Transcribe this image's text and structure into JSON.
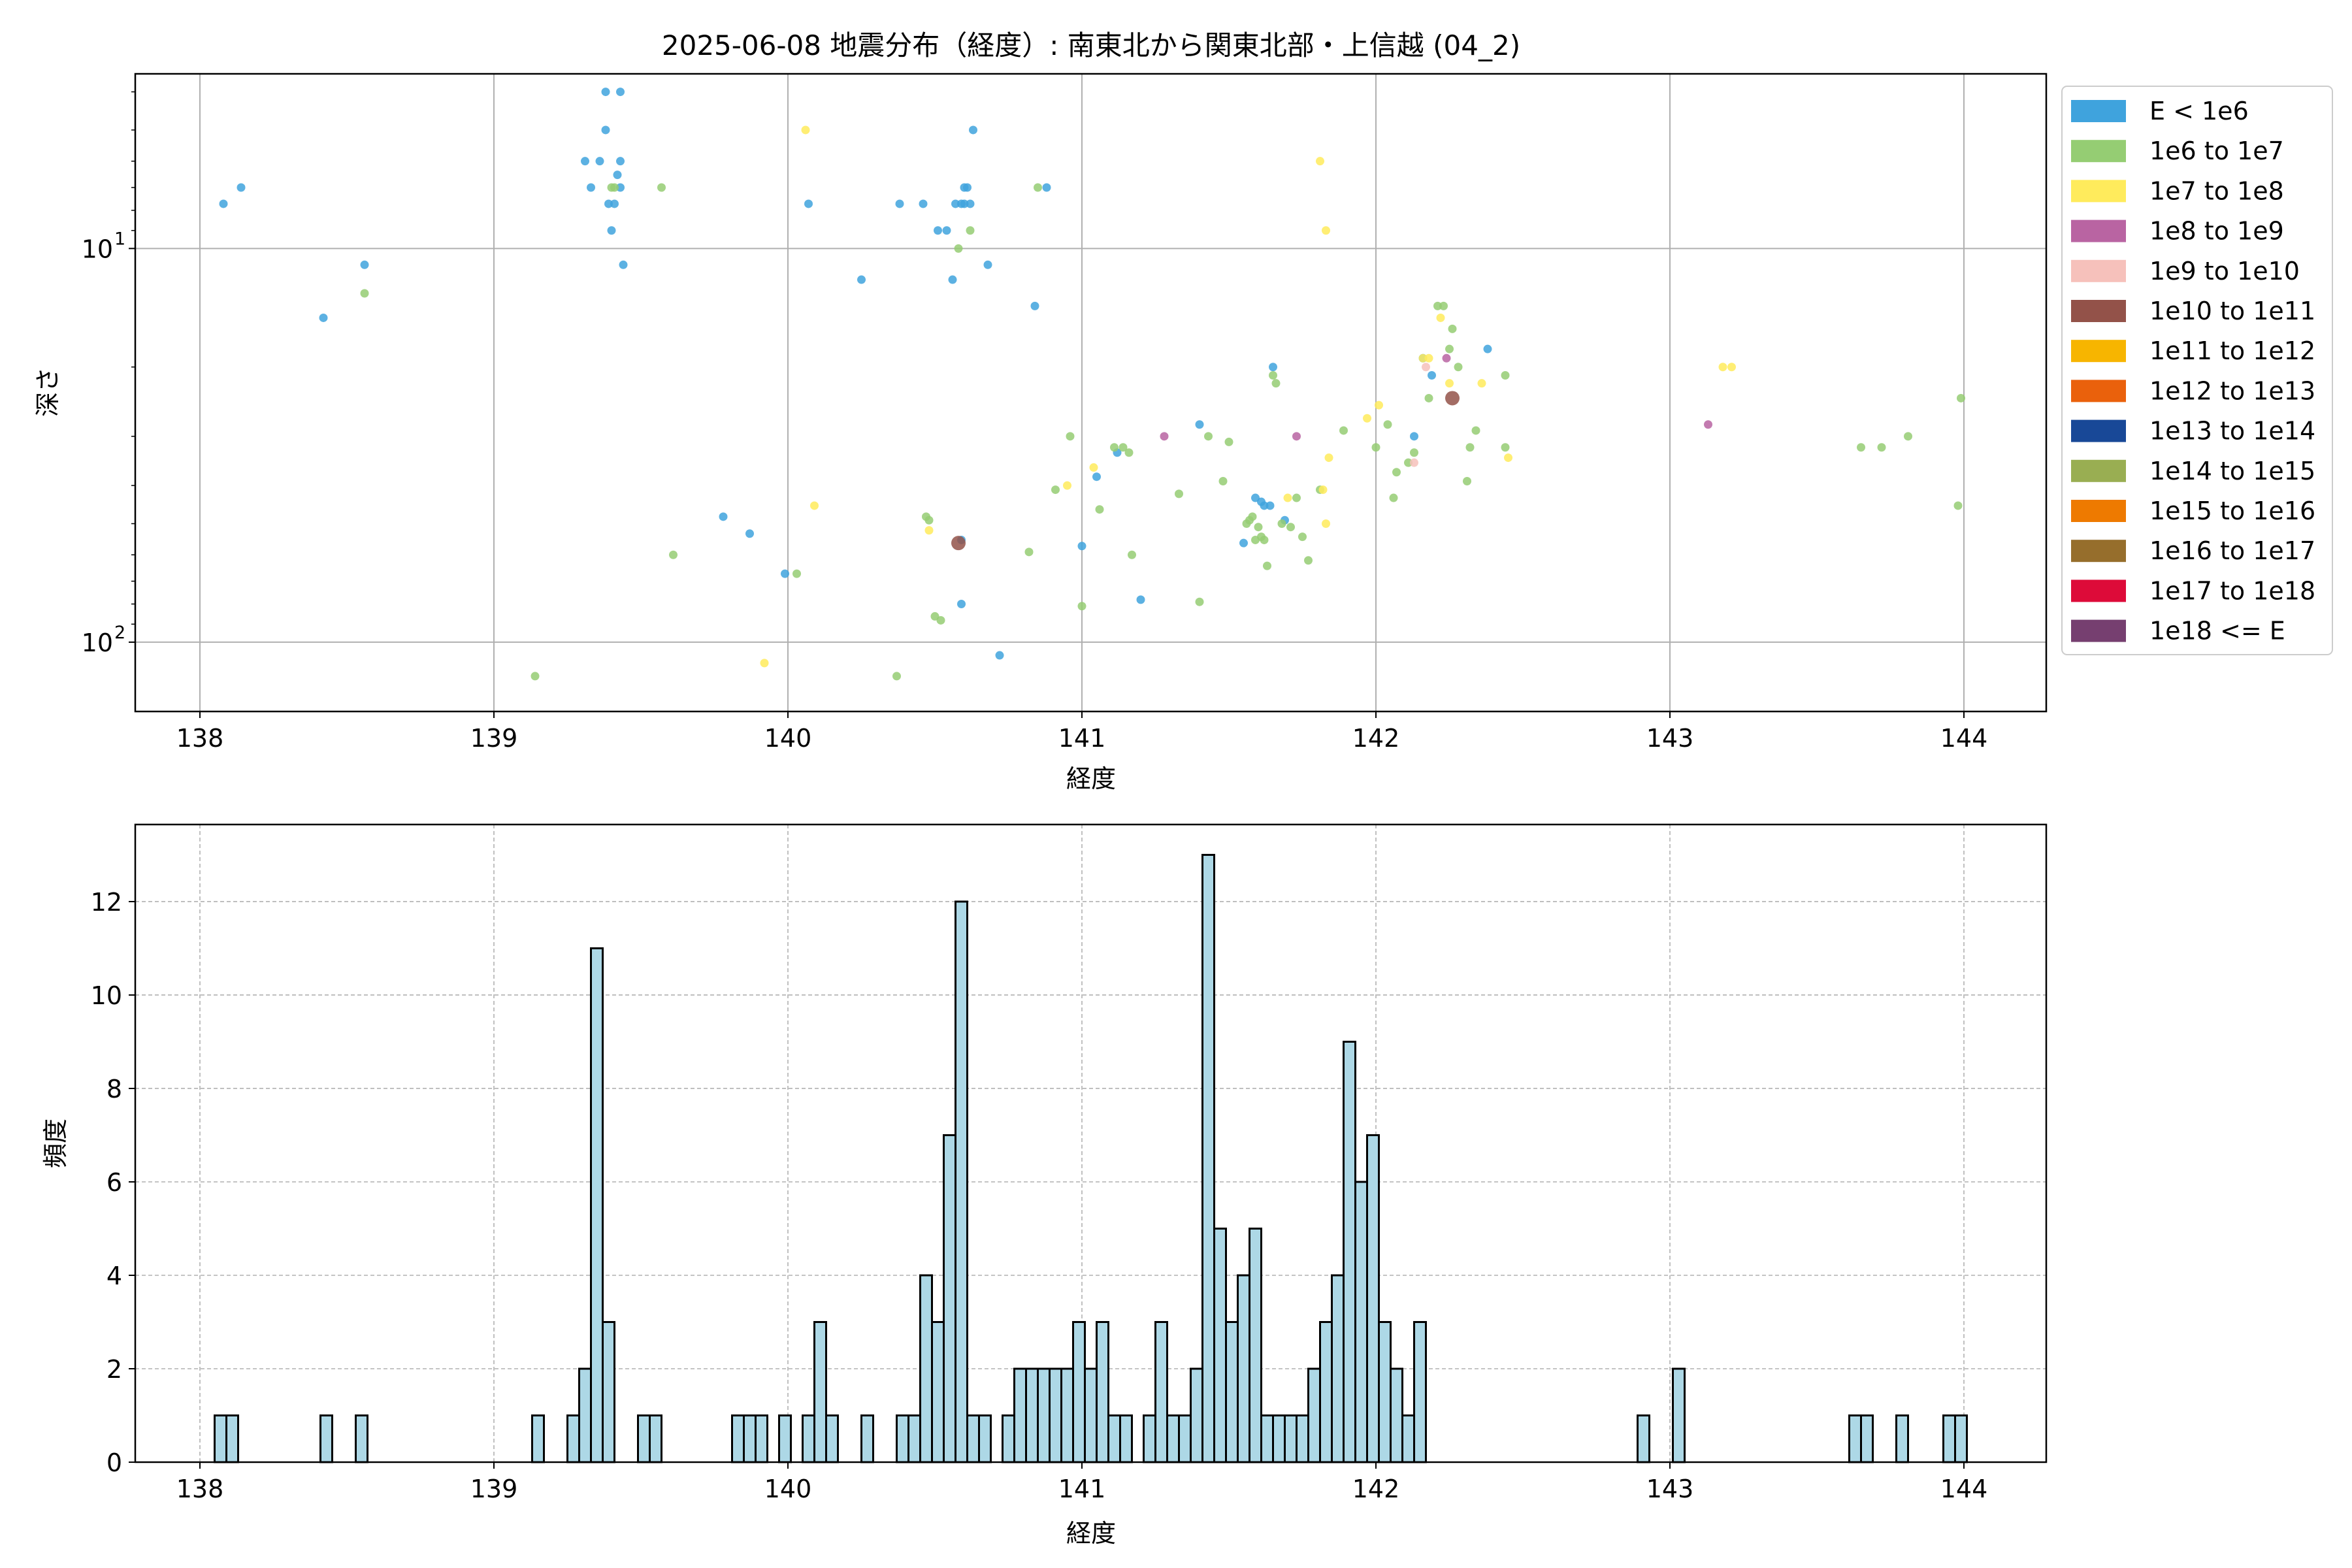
{
  "chart_data": [
    {
      "type": "scatter",
      "title": "2025-06-08 地震分布（経度）: 南東北から関東北部・上信越 (04_2)",
      "xlabel": "経度",
      "ylabel": "深さ",
      "xlim": [
        137.78,
        144.28
      ],
      "ylim": [
        3.6,
        150
      ],
      "y_scale": "log",
      "y_inverted": true,
      "grid": true,
      "legend_position": "outside-right",
      "x_ticks": [
        138,
        139,
        140,
        141,
        142,
        143,
        144
      ],
      "y_ticks": [
        {
          "value": 10,
          "label": "10",
          "exp": "1"
        },
        {
          "value": 100,
          "label": "10",
          "exp": "2"
        }
      ],
      "legend": [
        {
          "label": "E < 1e6",
          "color": "#3fa3dd"
        },
        {
          "label": "1e6 to 1e7",
          "color": "#95cd73"
        },
        {
          "label": "1e7 to 1e8",
          "color": "#ffeb5c"
        },
        {
          "label": "1e8 to 1e9",
          "color": "#b964a2"
        },
        {
          "label": "1e9 to 1e10",
          "color": "#f6c1bb"
        },
        {
          "label": "1e10 to 1e11",
          "color": "#935249"
        },
        {
          "label": "1e11 to 1e12",
          "color": "#f7b500"
        },
        {
          "label": "1e12 to 1e13",
          "color": "#ea610c"
        },
        {
          "label": "1e13 to 1e14",
          "color": "#184897"
        },
        {
          "label": "1e14 to 1e15",
          "color": "#99ae52"
        },
        {
          "label": "1e15 to 1e16",
          "color": "#ee7a00"
        },
        {
          "label": "1e16 to 1e17",
          "color": "#966e2c"
        },
        {
          "label": "1e17 to 1e18",
          "color": "#dd0b39"
        },
        {
          "label": "1e18 <= E",
          "color": "#763f70"
        }
      ],
      "series": [
        {
          "class": 0,
          "points": [
            [
              138.08,
              7.7
            ],
            [
              138.14,
              7.0
            ],
            [
              138.42,
              15.0
            ],
            [
              138.56,
              11.0
            ],
            [
              139.31,
              6.0
            ],
            [
              139.33,
              7.0
            ],
            [
              139.36,
              6.0
            ],
            [
              139.38,
              4.0
            ],
            [
              139.38,
              5.0
            ],
            [
              139.39,
              7.7
            ],
            [
              139.4,
              9.0
            ],
            [
              139.41,
              7.7
            ],
            [
              139.42,
              6.5
            ],
            [
              139.43,
              4.0
            ],
            [
              139.43,
              6.0
            ],
            [
              139.43,
              7.0
            ],
            [
              139.44,
              11.0
            ],
            [
              139.78,
              48.0
            ],
            [
              139.87,
              53.0
            ],
            [
              139.99,
              67.0
            ],
            [
              140.07,
              7.7
            ],
            [
              140.25,
              12.0
            ],
            [
              140.38,
              7.7
            ],
            [
              140.46,
              7.7
            ],
            [
              140.51,
              9.0
            ],
            [
              140.54,
              9.0
            ],
            [
              140.56,
              12.0
            ],
            [
              140.57,
              7.7
            ],
            [
              140.59,
              7.7
            ],
            [
              140.6,
              7.0
            ],
            [
              140.6,
              7.7
            ],
            [
              140.61,
              7.0
            ],
            [
              140.62,
              7.7
            ],
            [
              140.63,
              5.0
            ],
            [
              140.68,
              11.0
            ],
            [
              140.59,
              80.0
            ],
            [
              140.59,
              55.0
            ],
            [
              140.72,
              108.0
            ],
            [
              140.84,
              14.0
            ],
            [
              140.88,
              7.0
            ],
            [
              141.0,
              57.0
            ],
            [
              141.05,
              38.0
            ],
            [
              141.12,
              33.0
            ],
            [
              141.2,
              78.0
            ],
            [
              141.4,
              28.0
            ],
            [
              141.55,
              56.0
            ],
            [
              141.59,
              43.0
            ],
            [
              141.61,
              44.0
            ],
            [
              141.62,
              45.0
            ],
            [
              141.64,
              45.0
            ],
            [
              141.65,
              20.0
            ],
            [
              141.69,
              49.0
            ],
            [
              142.13,
              30.0
            ],
            [
              142.16,
              19.0
            ],
            [
              142.19,
              21.0
            ],
            [
              142.38,
              18.0
            ]
          ]
        },
        {
          "class": 1,
          "points": [
            [
              138.56,
              13.0
            ],
            [
              139.14,
              122.0
            ],
            [
              139.4,
              7.0
            ],
            [
              139.41,
              7.0
            ],
            [
              139.57,
              7.0
            ],
            [
              139.61,
              60.0
            ],
            [
              140.03,
              67.0
            ],
            [
              140.37,
              122.0
            ],
            [
              140.47,
              48.0
            ],
            [
              140.48,
              49.0
            ],
            [
              140.5,
              86.0
            ],
            [
              140.52,
              88.0
            ],
            [
              140.58,
              10.0
            ],
            [
              140.62,
              9.0
            ],
            [
              140.82,
              59.0
            ],
            [
              140.85,
              7.0
            ],
            [
              140.91,
              41.0
            ],
            [
              140.96,
              30.0
            ],
            [
              141.0,
              81.0
            ],
            [
              141.06,
              46.0
            ],
            [
              141.11,
              32.0
            ],
            [
              141.14,
              32.0
            ],
            [
              141.16,
              33.0
            ],
            [
              141.17,
              60.0
            ],
            [
              141.33,
              42.0
            ],
            [
              141.4,
              79.0
            ],
            [
              141.43,
              30.0
            ],
            [
              141.48,
              39.0
            ],
            [
              141.5,
              31.0
            ],
            [
              141.56,
              50.0
            ],
            [
              141.57,
              49.0
            ],
            [
              141.58,
              48.0
            ],
            [
              141.59,
              55.0
            ],
            [
              141.6,
              51.0
            ],
            [
              141.61,
              54.0
            ],
            [
              141.62,
              55.0
            ],
            [
              141.63,
              64.0
            ],
            [
              141.65,
              21.0
            ],
            [
              141.66,
              22.0
            ],
            [
              141.68,
              50.0
            ],
            [
              141.71,
              51.0
            ],
            [
              141.73,
              43.0
            ],
            [
              141.75,
              54.0
            ],
            [
              141.77,
              62.0
            ],
            [
              141.81,
              41.0
            ],
            [
              141.89,
              29.0
            ],
            [
              142.0,
              32.0
            ],
            [
              142.04,
              28.0
            ],
            [
              142.06,
              43.0
            ],
            [
              142.07,
              37.0
            ],
            [
              142.11,
              35.0
            ],
            [
              142.13,
              33.0
            ],
            [
              142.18,
              24.0
            ],
            [
              142.21,
              14.0
            ],
            [
              142.23,
              14.0
            ],
            [
              142.25,
              18.0
            ],
            [
              142.26,
              16.0
            ],
            [
              142.28,
              20.0
            ],
            [
              142.31,
              39.0
            ],
            [
              142.32,
              32.0
            ],
            [
              142.34,
              29.0
            ],
            [
              142.44,
              32.0
            ],
            [
              142.44,
              21.0
            ],
            [
              143.65,
              32.0
            ],
            [
              143.72,
              32.0
            ],
            [
              143.81,
              30.0
            ],
            [
              143.98,
              45.0
            ],
            [
              143.99,
              24.0
            ]
          ]
        },
        {
          "class": 2,
          "points": [
            [
              139.92,
              113.0
            ],
            [
              140.06,
              5.0
            ],
            [
              140.09,
              45.0
            ],
            [
              140.48,
              52.0
            ],
            [
              140.95,
              40.0
            ],
            [
              141.04,
              36.0
            ],
            [
              141.7,
              43.0
            ],
            [
              141.81,
              6.0
            ],
            [
              141.83,
              9.0
            ],
            [
              141.82,
              41.0
            ],
            [
              141.84,
              34.0
            ],
            [
              141.83,
              50.0
            ],
            [
              141.97,
              27.0
            ],
            [
              142.01,
              25.0
            ],
            [
              142.16,
              19.0
            ],
            [
              142.18,
              19.0
            ],
            [
              142.22,
              15.0
            ],
            [
              142.25,
              22.0
            ],
            [
              142.36,
              22.0
            ],
            [
              142.45,
              34.0
            ],
            [
              143.18,
              20.0
            ],
            [
              143.21,
              20.0
            ]
          ]
        },
        {
          "class": 3,
          "points": [
            [
              141.28,
              30.0
            ],
            [
              141.73,
              30.0
            ],
            [
              142.24,
              19.0
            ],
            [
              143.13,
              28.0
            ]
          ]
        },
        {
          "class": 4,
          "points": [
            [
              142.13,
              35.0
            ],
            [
              142.17,
              20.0
            ]
          ]
        },
        {
          "class": 5,
          "points": [
            [
              140.58,
              56.0
            ],
            [
              142.26,
              24.0
            ]
          ],
          "larger": true
        }
      ]
    },
    {
      "type": "bar",
      "subtype": "histogram",
      "xlabel": "経度",
      "ylabel": "頻度",
      "xlim": [
        137.78,
        144.28
      ],
      "ylim": [
        0,
        13.65
      ],
      "grid": true,
      "x_ticks": [
        138,
        139,
        140,
        141,
        142,
        143,
        144
      ],
      "y_ticks": [
        0,
        2,
        4,
        6,
        8,
        10,
        12
      ],
      "bin_start": 138.05,
      "bin_width": 0.04,
      "values": [
        1,
        1,
        0,
        0,
        0,
        0,
        0,
        0,
        0,
        1,
        0,
        0,
        1,
        0,
        0,
        0,
        0,
        0,
        0,
        0,
        0,
        0,
        0,
        0,
        0,
        0,
        0,
        1,
        0,
        0,
        1,
        2,
        11,
        3,
        0,
        0,
        1,
        1,
        0,
        0,
        0,
        0,
        0,
        0,
        1,
        1,
        1,
        0,
        1,
        0,
        1,
        3,
        1,
        0,
        0,
        1,
        0,
        0,
        1,
        1,
        4,
        3,
        7,
        12,
        1,
        1,
        0,
        1,
        2,
        2,
        2,
        2,
        2,
        3,
        2,
        3,
        1,
        1,
        0,
        1,
        3,
        1,
        1,
        2,
        13,
        5,
        3,
        4,
        5,
        1,
        1,
        1,
        1,
        2,
        3,
        4,
        9,
        6,
        7,
        3,
        2,
        1,
        3,
        0,
        0,
        0,
        0,
        0,
        0,
        0,
        0,
        0,
        0,
        0,
        0,
        0,
        0,
        0,
        0,
        0,
        0,
        1,
        0,
        0,
        2,
        0,
        0,
        0,
        0,
        0,
        0,
        0,
        0,
        0,
        0,
        0,
        0,
        0,
        0,
        1,
        1,
        0,
        0,
        1,
        0,
        0,
        0,
        1,
        1
      ]
    }
  ]
}
